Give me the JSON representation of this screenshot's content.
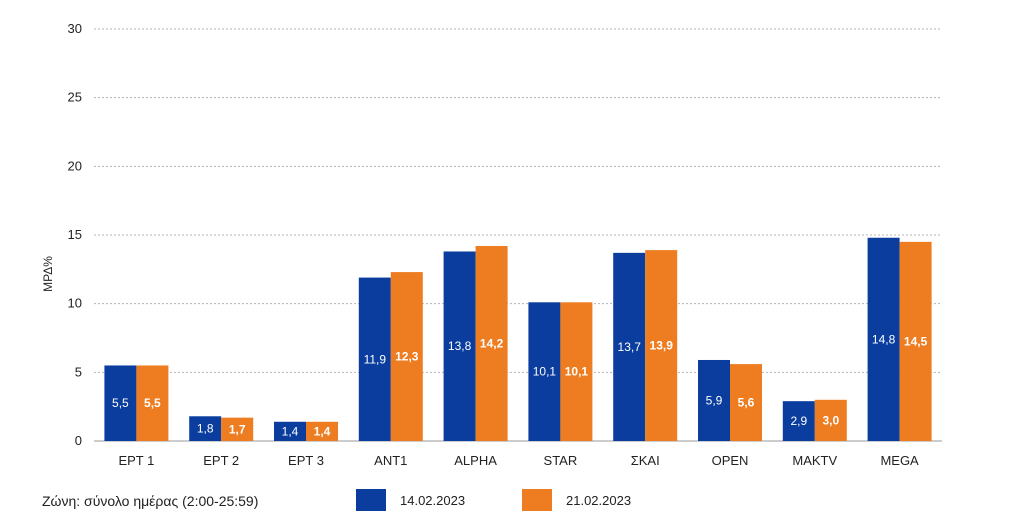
{
  "chart_data": {
    "type": "bar",
    "ylabel": "ΜΡΔ%",
    "ylim": [
      0,
      30
    ],
    "yticks": [
      0,
      5,
      10,
      15,
      20,
      25,
      30
    ],
    "grid": true,
    "categories": [
      "ΕΡΤ 1",
      "ΕΡΤ 2",
      "ΕΡΤ 3",
      "ANT1",
      "ALPHA",
      "STAR",
      "ΣΚΑΙ",
      "OPEN",
      "MAKTV",
      "MEGA"
    ],
    "series": [
      {
        "name": "14.02.2023",
        "color": "#0a3d9e",
        "values": [
          5.5,
          1.8,
          1.4,
          11.9,
          13.8,
          10.1,
          13.7,
          5.9,
          2.9,
          14.8
        ],
        "labels": [
          "5,5",
          "1,8",
          "1,4",
          "11,9",
          "13,8",
          "10,1",
          "13,7",
          "5,9",
          "2,9",
          "14,8"
        ]
      },
      {
        "name": "21.02.2023",
        "color": "#ee7d21",
        "values": [
          5.5,
          1.7,
          1.4,
          12.3,
          14.2,
          10.1,
          13.9,
          5.6,
          3.0,
          14.5
        ],
        "labels": [
          "5,5",
          "1,7",
          "1,4",
          "12,3",
          "14,2",
          "10,1",
          "13,9",
          "5,6",
          "3,0",
          "14,5"
        ]
      }
    ]
  },
  "footer": {
    "zone_label": "Ζώνη: σύνολο ημέρας (2:00-25:59)"
  }
}
